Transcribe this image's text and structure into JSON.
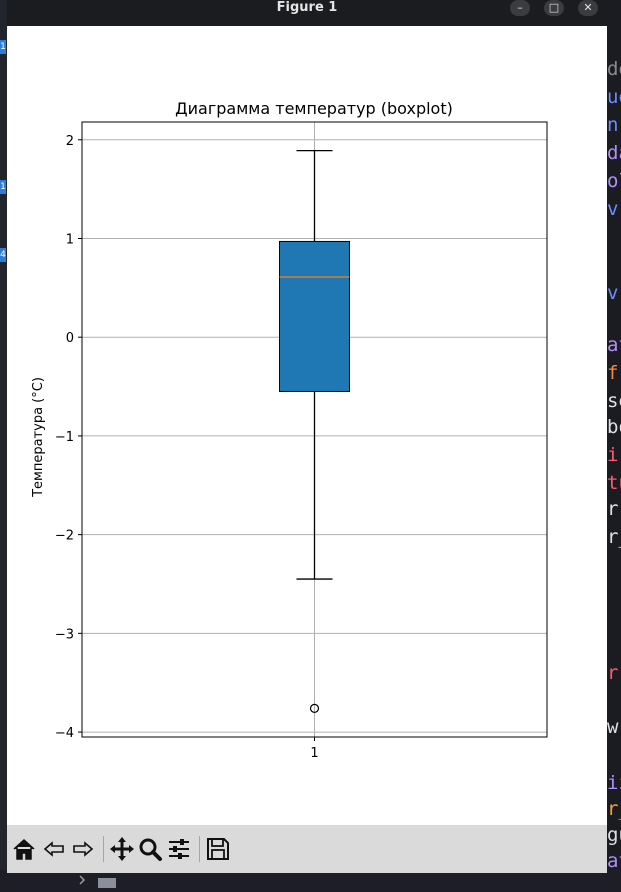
{
  "window": {
    "title": "Figure 1",
    "minimize_icon": "minimize-icon",
    "maximize_icon": "maximize-icon",
    "close_icon": "close-icon"
  },
  "background_editor": {
    "code_fragments": [
      {
        "text": "de",
        "color": "#8a8a8a"
      },
      {
        "text": "ue",
        "color": "#6b8cff"
      },
      {
        "text": "n",
        "color": "#6b8cff"
      },
      {
        "text": "da",
        "color": "#b18cff"
      },
      {
        "text": "ol",
        "color": "#b18cff"
      },
      {
        "text": "v",
        "color": "#6b8cff"
      },
      {
        "text": "v(",
        "color": "#6b8cff"
      },
      {
        "text": "at",
        "color": "#b18cff"
      },
      {
        "text": "f'",
        "color": "#f28b3c"
      },
      {
        "text": "se",
        "color": "#e0e0e0"
      },
      {
        "text": "bo",
        "color": "#e0e0e0"
      },
      {
        "text": "ir",
        "color": "#ff5a6e"
      },
      {
        "text": "tu",
        "color": "#ff5a6e"
      },
      {
        "text": "r",
        "color": "#e0e0e0"
      },
      {
        "text": "r_",
        "color": "#e0e0e0"
      },
      {
        "text": "r",
        "color": "#ff5a6e"
      },
      {
        "text": "w",
        "color": "#e0e0e0"
      },
      {
        "text": "iz",
        "color": "#b18cff"
      },
      {
        "text": "r_",
        "color": "#f2a03c"
      },
      {
        "text": "gu",
        "color": "#e0e0e0"
      },
      {
        "text": "at",
        "color": "#b18cff"
      }
    ],
    "badges": [
      "1",
      "1",
      "4"
    ]
  },
  "chart_data": {
    "type": "boxplot",
    "title": "Диаграмма температур (boxplot)",
    "xlabel": "",
    "ylabel": "Температура (°C)",
    "categories": [
      "1"
    ],
    "ylim": [
      -4.05,
      2.18
    ],
    "yticks": [
      2,
      1,
      0,
      -1,
      -2,
      -3,
      -4
    ],
    "ytick_labels": [
      "2",
      "1",
      "0",
      "−1",
      "−2",
      "−3",
      "−4"
    ],
    "grid": true,
    "boxes": [
      {
        "whisker_low": -2.45,
        "q1": -0.55,
        "median": 0.61,
        "q3": 0.97,
        "whisker_high": 1.89,
        "fliers": [
          -3.76
        ]
      }
    ],
    "colors": {
      "box_fill": "#1f77b4",
      "median": "#ff7f0e",
      "grid": "#b0b0b0",
      "text": "#000000"
    }
  },
  "toolbar": {
    "buttons": [
      {
        "name": "home-button",
        "icon": "home-icon"
      },
      {
        "name": "back-button",
        "icon": "arrow-left-icon"
      },
      {
        "name": "forward-button",
        "icon": "arrow-right-icon"
      },
      {
        "name": "pan-button",
        "icon": "move-icon"
      },
      {
        "name": "zoom-button",
        "icon": "magnifier-icon"
      },
      {
        "name": "configure-subplots-button",
        "icon": "sliders-icon"
      },
      {
        "name": "save-button",
        "icon": "floppy-disk-icon"
      }
    ]
  }
}
